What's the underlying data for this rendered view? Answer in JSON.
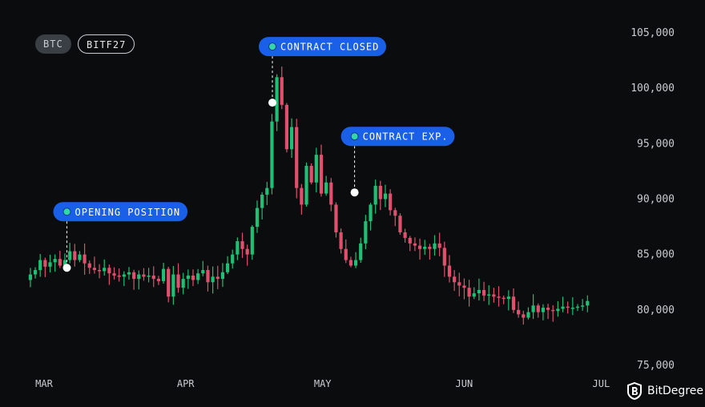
{
  "tickers": {
    "asset": "BTC",
    "contract": "BITF27"
  },
  "brand": {
    "name": "BitDegree"
  },
  "colors": {
    "background": "#0b0c0e",
    "up": "#1fbf75",
    "down": "#e0506e",
    "annotation": "#1a5fe8",
    "annotation_dot": "#33d6a6",
    "axis_text": "#c9ccd1"
  },
  "chart_data": {
    "type": "candlestick",
    "title": "",
    "ylim": [
      75000,
      105000
    ],
    "yticks": [
      105000,
      100000,
      95000,
      90000,
      85000,
      80000,
      75000
    ],
    "ytick_labels": [
      "105,000",
      "100,000",
      "95,000",
      "90,000",
      "85,000",
      "80,000",
      "75,000"
    ],
    "xticks": [
      {
        "label": "MAR",
        "date": "2025-03-01"
      },
      {
        "label": "APR",
        "date": "2025-04-01"
      },
      {
        "label": "MAY",
        "date": "2025-05-01"
      },
      {
        "label": "JUN",
        "date": "2025-06-01"
      },
      {
        "label": "JUL",
        "date": "2025-07-01"
      }
    ],
    "close_prices": [
      83200,
      83600,
      84500,
      83900,
      84300,
      84600,
      84000,
      84500,
      85300,
      84500,
      85000,
      84200,
      83800,
      83600,
      83500,
      83800,
      83300,
      83100,
      83000,
      83200,
      83400,
      82800,
      83200,
      83000,
      83100,
      82800,
      82600,
      83700,
      81200,
      83200,
      82000,
      82800,
      83100,
      82700,
      83300,
      83600,
      82500,
      83000,
      82800,
      83400,
      84200,
      85000,
      86200,
      85500,
      85000,
      87500,
      89200,
      90400,
      91000,
      97000,
      101000,
      98500,
      94500,
      96500,
      91000,
      89500,
      93000,
      91500,
      94000,
      90500,
      91500,
      89500,
      87000,
      85500,
      84500,
      84000,
      84500,
      86000,
      88000,
      89500,
      91200,
      90000,
      90500,
      89000,
      88500,
      87000,
      86500,
      86000,
      85800,
      85500,
      85700,
      85500,
      86000,
      85600,
      84000,
      83000,
      82500,
      82200,
      82000,
      81200,
      81500,
      81800,
      81300,
      81400,
      81200,
      81100,
      81000,
      81200,
      80000,
      79600,
      79300,
      79800,
      80400,
      79800,
      80200,
      80000,
      79900,
      80100,
      80300,
      80200,
      80200,
      80300,
      80400,
      80800
    ],
    "annotations": [
      {
        "label": "OPENING POSITION",
        "date": "2025-03-06",
        "price": 83800
      },
      {
        "label": "CONTRACT CLOSED",
        "date": "2025-04-20",
        "price": 98700
      },
      {
        "label": "CONTRACT EXP.",
        "date": "2025-05-08",
        "price": 90600
      }
    ]
  }
}
